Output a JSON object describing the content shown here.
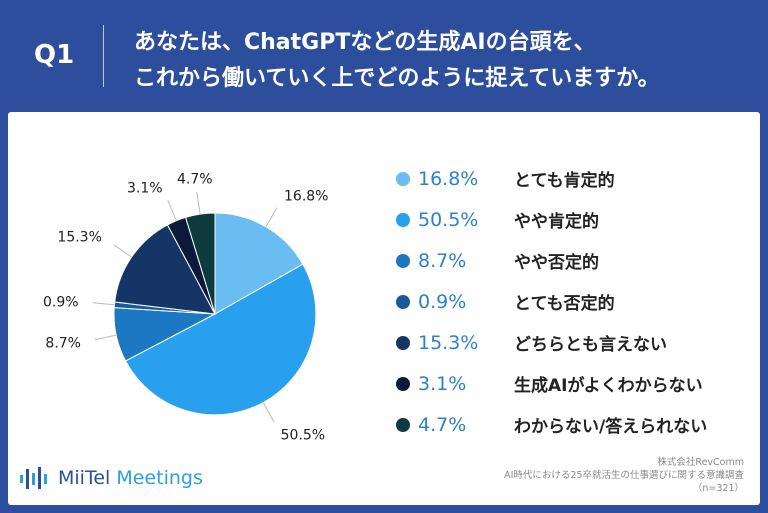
{
  "header": {
    "q_label": "Q1",
    "title_line1": "あなたは、ChatGPTなどの生成AIの台頭を、",
    "title_line2": "これから働いていく上でどのように捉えていますか。"
  },
  "chart_data": {
    "type": "pie",
    "start": "top, clockwise",
    "slices": [
      {
        "label": "とても肯定的",
        "value": 16.8,
        "value_label": "16.8%",
        "color": "#69bdf2"
      },
      {
        "label": "やや肯定的",
        "value": 50.5,
        "value_label": "50.5%",
        "color": "#28a0ee"
      },
      {
        "label": "やや否定的",
        "value": 8.7,
        "value_label": "8.7%",
        "color": "#1c78c2"
      },
      {
        "label": "とても否定的",
        "value": 0.9,
        "value_label": "0.9%",
        "color": "#175b98"
      },
      {
        "label": "どちらとも言えない",
        "value": 15.3,
        "value_label": "15.3%",
        "color": "#153566"
      },
      {
        "label": "生成AIがよくわからない",
        "value": 3.1,
        "value_label": "3.1%",
        "color": "#0b1a3b"
      },
      {
        "label": "わからない/答えられない",
        "value": 4.7,
        "value_label": "4.7%",
        "color": "#0c3a3d"
      }
    ],
    "legend_position": "right"
  },
  "logo": {
    "part1": "MiiTel",
    "part2": "Meetings"
  },
  "source": {
    "line1": "株式会社RevComm",
    "line2": "AI時代における25卒就活生の仕事選びに関する意識調査",
    "line3": "（n=321）"
  }
}
